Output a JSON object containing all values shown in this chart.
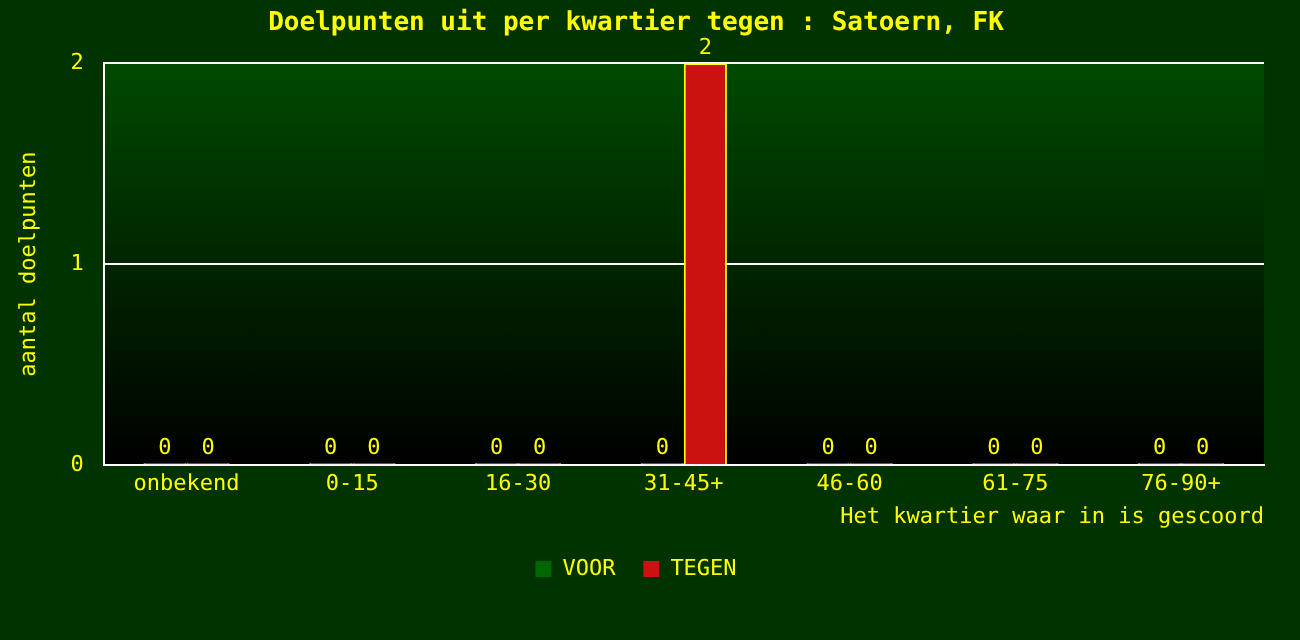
{
  "chart_data": {
    "type": "bar",
    "title": "Doelpunten uit per kwartier tegen : Satoern, FK",
    "xlabel": "Het kwartier waar in is gescoord",
    "ylabel": "aantal doelpunten",
    "categories": [
      "onbekend",
      "0-15",
      "16-30",
      "31-45+",
      "46-60",
      "61-75",
      "76-90+"
    ],
    "series": [
      {
        "name": "VOOR",
        "color": "#006600",
        "values": [
          0,
          0,
          0,
          0,
          0,
          0,
          0
        ]
      },
      {
        "name": "TEGEN",
        "color": "#cc1111",
        "values": [
          0,
          0,
          0,
          2,
          0,
          0,
          0
        ]
      }
    ],
    "ylim": [
      0,
      2
    ],
    "yticks": [
      0,
      1,
      2
    ],
    "grid": "y",
    "legend": "bottom",
    "data_labels": true
  }
}
